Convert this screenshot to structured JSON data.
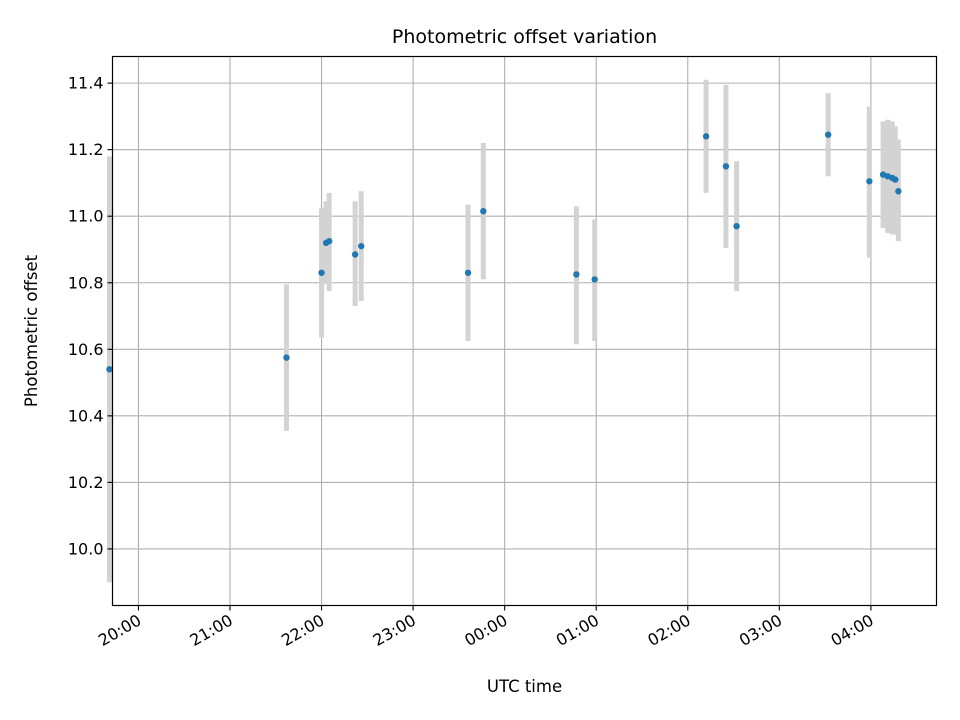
{
  "chart_data": {
    "type": "scatter",
    "title": "Photometric offset variation",
    "xlabel": "UTC time",
    "ylabel": "Photometric offset",
    "x_axis_type": "time",
    "xlim": [
      "19:43",
      "04:43"
    ],
    "ylim": [
      9.83,
      11.48
    ],
    "x_ticks": [
      "20:00",
      "21:00",
      "22:00",
      "23:00",
      "00:00",
      "01:00",
      "02:00",
      "03:00",
      "04:00"
    ],
    "y_ticks": [
      "10.0",
      "10.2",
      "10.4",
      "10.6",
      "10.8",
      "11.0",
      "11.2",
      "11.4"
    ],
    "y_tick_values": [
      10.0,
      10.2,
      10.4,
      10.6,
      10.8,
      11.0,
      11.2,
      11.4
    ],
    "grid": true,
    "marker_color": "#1f77b4",
    "errorbar_color": "#d3d3d3",
    "points": [
      {
        "time": "19:41",
        "y": 10.54,
        "err_low": 9.9,
        "err_high": 11.18
      },
      {
        "time": "21:37",
        "y": 10.575,
        "err_low": 10.355,
        "err_high": 10.795
      },
      {
        "time": "22:00",
        "y": 10.83,
        "err_low": 10.635,
        "err_high": 11.025
      },
      {
        "time": "22:03",
        "y": 10.92,
        "err_low": 10.795,
        "err_high": 11.045
      },
      {
        "time": "22:05",
        "y": 10.925,
        "err_low": 10.775,
        "err_high": 11.07
      },
      {
        "time": "22:22",
        "y": 10.885,
        "err_low": 10.73,
        "err_high": 11.045
      },
      {
        "time": "22:26",
        "y": 10.91,
        "err_low": 10.745,
        "err_high": 11.075
      },
      {
        "time": "23:36",
        "y": 10.83,
        "err_low": 10.625,
        "err_high": 11.035
      },
      {
        "time": "23:46",
        "y": 11.015,
        "err_low": 10.81,
        "err_high": 11.22
      },
      {
        "time": "00:47",
        "y": 10.825,
        "err_low": 10.615,
        "err_high": 11.03
      },
      {
        "time": "00:59",
        "y": 10.81,
        "err_low": 10.625,
        "err_high": 10.99
      },
      {
        "time": "02:12",
        "y": 11.24,
        "err_low": 11.07,
        "err_high": 11.41
      },
      {
        "time": "02:25",
        "y": 11.15,
        "err_low": 10.905,
        "err_high": 11.395
      },
      {
        "time": "02:32",
        "y": 10.97,
        "err_low": 10.775,
        "err_high": 11.165
      },
      {
        "time": "03:32",
        "y": 11.245,
        "err_low": 11.12,
        "err_high": 11.37
      },
      {
        "time": "03:59",
        "y": 11.105,
        "err_low": 10.875,
        "err_high": 11.33
      },
      {
        "time": "04:08",
        "y": 11.125,
        "err_low": 10.965,
        "err_high": 11.285
      },
      {
        "time": "04:11",
        "y": 11.12,
        "err_low": 10.95,
        "err_high": 11.29
      },
      {
        "time": "04:14",
        "y": 11.115,
        "err_low": 10.945,
        "err_high": 11.285
      },
      {
        "time": "04:16",
        "y": 11.11,
        "err_low": 10.945,
        "err_high": 11.27
      },
      {
        "time": "04:18",
        "y": 11.075,
        "err_low": 10.925,
        "err_high": 11.23
      }
    ]
  }
}
